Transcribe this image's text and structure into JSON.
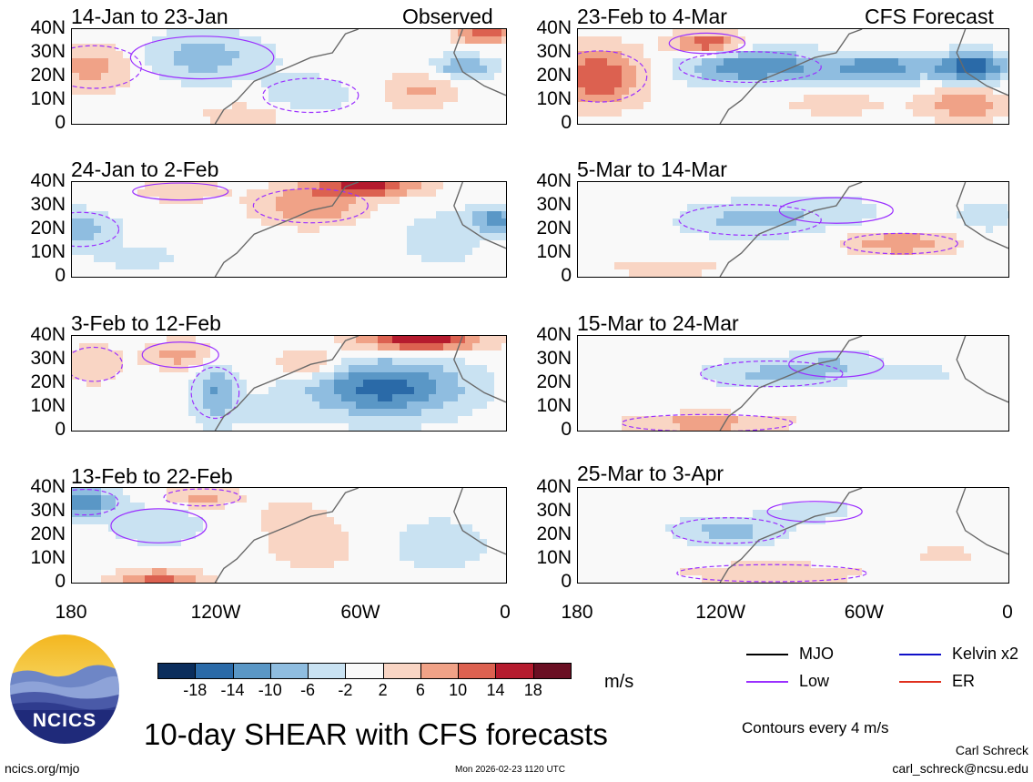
{
  "panels_left": [
    {
      "title": "14-Jan to 23-Jan",
      "tag": "Observed"
    },
    {
      "title": "24-Jan to 2-Feb",
      "tag": ""
    },
    {
      "title": "3-Feb to 12-Feb",
      "tag": ""
    },
    {
      "title": "13-Feb to 22-Feb",
      "tag": ""
    }
  ],
  "panels_right": [
    {
      "title": "23-Feb to 4-Mar",
      "tag": "CFS Forecast"
    },
    {
      "title": "5-Mar to 14-Mar",
      "tag": ""
    },
    {
      "title": "15-Mar to 24-Mar",
      "tag": ""
    },
    {
      "title": "25-Mar to 3-Apr",
      "tag": ""
    }
  ],
  "chart_data": {
    "type": "heatmap",
    "title": "10-day SHEAR with CFS forecasts",
    "variable": "wind shear anomaly",
    "units": "m/s",
    "lat_ticks": [
      "40N",
      "30N",
      "20N",
      "10N",
      "0"
    ],
    "lon_ticks": [
      "180",
      "120W",
      "60W",
      "0"
    ],
    "lat_range": [
      0,
      40
    ],
    "lon_range": [
      -180,
      0
    ],
    "colorbar": {
      "levels": [
        -18,
        -14,
        -10,
        -6,
        -2,
        2,
        6,
        10,
        14,
        18
      ],
      "level_labels": [
        "-18",
        "-14",
        "-10",
        "-6",
        "-2",
        "2",
        "6",
        "10",
        "14",
        "18"
      ],
      "colors": [
        "#0a2d5c",
        "#2a6aa8",
        "#5a97c6",
        "#8fbde0",
        "#c9e2f2",
        "#f9f9f9",
        "#f9d5c4",
        "#f0a287",
        "#dc6150",
        "#b51b2e",
        "#6a0f23"
      ]
    },
    "contour_interval_text": "Contours every 4 m/s"
  },
  "legend": [
    {
      "label": "MJO",
      "color": "#000000"
    },
    {
      "label": "Kelvin x2",
      "color": "#1010c8"
    },
    {
      "label": "Low",
      "color": "#9b30ff"
    },
    {
      "label": "ER",
      "color": "#e0301e"
    }
  ],
  "units_label": "m/s",
  "main_title": "10-day SHEAR with CFS forecasts",
  "contours_note": "Contours every 4 m/s",
  "logo_text": "NCICS",
  "footer": {
    "left": "ncics.org/mjo",
    "center": "Mon 2026-02-23 1120 UTC",
    "author": "Carl Schreck",
    "email": "carl_schreck@ncsu.edu"
  }
}
